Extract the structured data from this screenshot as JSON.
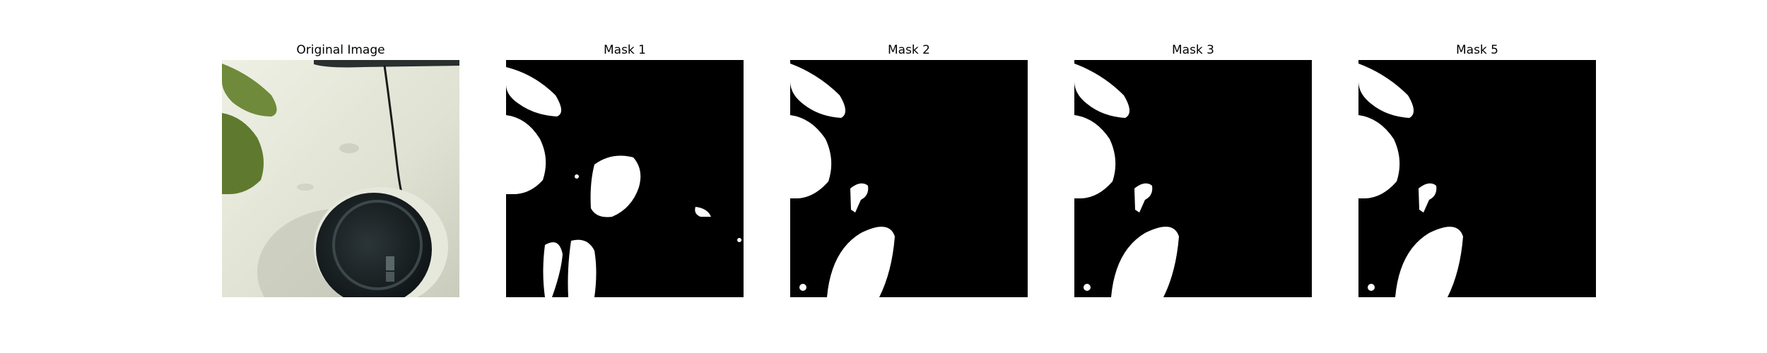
{
  "figure": {
    "panels": [
      {
        "title": "Original Image"
      },
      {
        "title": "Mask 1"
      },
      {
        "title": "Mask 2"
      },
      {
        "title": "Mask 3"
      },
      {
        "title": "Mask 5"
      }
    ]
  },
  "colors": {
    "background": "#ffffff",
    "mask_background": "#000000",
    "mask_foreground": "#ffffff",
    "car_body": "#e2e4d6",
    "leaf": "#6f8a3a",
    "fuel_cap": "#1b2226",
    "seam_line": "#1a1a1a"
  }
}
